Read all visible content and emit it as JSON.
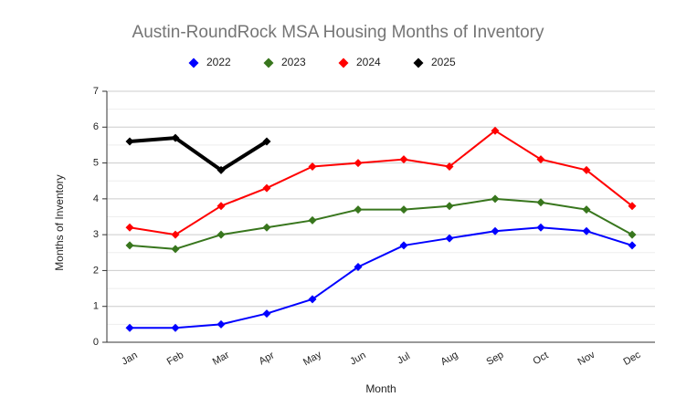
{
  "chart_data": {
    "type": "line",
    "title": "Austin-RoundRock MSA Housing Months of Inventory",
    "x_label": "Month",
    "y_label": "Months of Inventory",
    "categories": [
      "Jan",
      "Feb",
      "Mar",
      "Apr",
      "May",
      "Jun",
      "Jul",
      "Aug",
      "Sep",
      "Oct",
      "Nov",
      "Dec"
    ],
    "series": [
      {
        "name": "2022",
        "color": "#0000ff",
        "line_width": 2,
        "values": [
          0.4,
          0.4,
          0.5,
          0.8,
          1.2,
          2.1,
          2.7,
          2.9,
          3.1,
          3.2,
          3.1,
          2.7
        ]
      },
      {
        "name": "2023",
        "color": "#38761d",
        "line_width": 2,
        "values": [
          2.7,
          2.6,
          3.0,
          3.2,
          3.4,
          3.7,
          3.7,
          3.8,
          4.0,
          3.9,
          3.7,
          3.0
        ]
      },
      {
        "name": "2024",
        "color": "#ff0000",
        "line_width": 2,
        "values": [
          3.2,
          3.0,
          3.8,
          4.3,
          4.9,
          5.0,
          5.1,
          4.9,
          5.9,
          5.1,
          4.8,
          3.8
        ]
      },
      {
        "name": "2025",
        "color": "#000000",
        "line_width": 4,
        "values": [
          5.6,
          5.7,
          4.8,
          5.6,
          null,
          null,
          null,
          null,
          null,
          null,
          null,
          null
        ]
      }
    ],
    "ylim": [
      0,
      7
    ],
    "yticks": [
      0,
      1,
      2,
      3,
      4,
      5,
      6,
      7
    ],
    "yminorticks": [
      0.5,
      1.5,
      2.5,
      3.5,
      4.5,
      5.5,
      6.5
    ],
    "grid": true,
    "legend": "top"
  }
}
